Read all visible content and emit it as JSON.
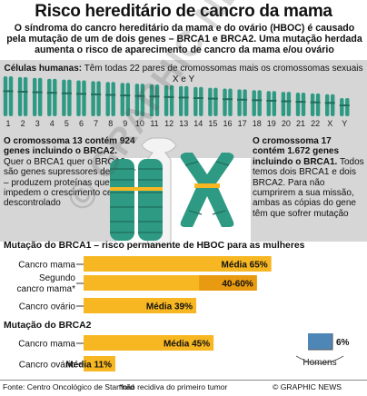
{
  "header": {
    "title": "Risco hereditário de cancro da mama",
    "intro": "O síndroma do cancro hereditário da mama e do ovário (HBOC) é causado pela mutação de um de dois genes – BRCA1 e BRCA2. Uma mutação herdada aumenta o risco de aparecimento de cancro da mama e/ou ovário"
  },
  "cells": {
    "label": "Células humanas:",
    "text": "Têm todas 22 pares de cromossomas mais os cromossomas sexuais X e Y",
    "numbers": [
      "1",
      "2",
      "3",
      "4",
      "5",
      "6",
      "7",
      "8",
      "9",
      "10",
      "11",
      "12",
      "13",
      "14",
      "15",
      "16",
      "17",
      "18",
      "19",
      "20",
      "21",
      "22",
      "X",
      "Y"
    ]
  },
  "left_panel": {
    "highlight": "O cromossoma 13 contém 924 genes incluindo o BRCA2.",
    "text": "Quer o BRCA1 quer o BRCA2 são genes supressores de tumor – produzem proteínas que impedem o crescimento celular descontrolado"
  },
  "right_panel": {
    "highlight": "O cromossoma 17 contém 1.672 genes incluindo o BRCA1.",
    "text": "Todos temos dois BRCA1 e dois BRCA2. Para não cumprirem a sua missão, ambas as cópias do gene têm que sofrer mutação"
  },
  "chart_data": {
    "type": "bar",
    "groups": [
      {
        "title": "Mutação do BRCA1 – risco permanente de HBOC para as mulheres",
        "bars": [
          {
            "category": "Cancro mama",
            "value": 65,
            "label": "Média 65%"
          },
          {
            "category": "Segundo cancro mama*",
            "value": 60,
            "range": [
              40,
              60
            ],
            "label": "40-60%"
          },
          {
            "category": "Cancro ovário",
            "value": 39,
            "label": "Média 39%"
          }
        ]
      },
      {
        "title": "Mutação do BRCA2",
        "bars": [
          {
            "category": "Cancro mama",
            "value": 45,
            "label": "Média 45%"
          },
          {
            "category": "Cancro ovário",
            "value": 11,
            "label": "Média 11%"
          }
        ]
      }
    ],
    "men": {
      "label": "Homens",
      "value": 6,
      "value_label": "6%"
    },
    "colors": {
      "bar": "#f7b722",
      "bar_dark": "#e89a10",
      "men": "#4e86b8",
      "chromosome": "#2e9a83"
    }
  },
  "footer": {
    "source": "Fonte: Centro Oncológico de Stanford",
    "note": "*não recidiva do primeiro tumor",
    "credit": "© GRAPHIC NEWS"
  },
  "watermark": "© GRAPHIC NEWS"
}
